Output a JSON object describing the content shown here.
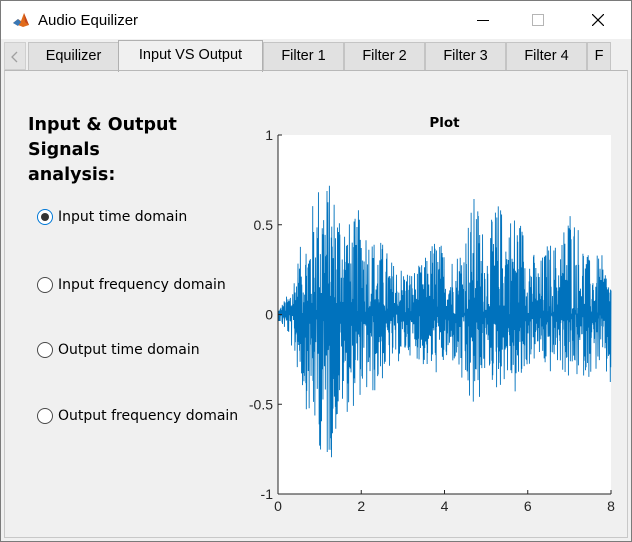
{
  "window": {
    "title": "Audio Equilizer"
  },
  "tabs": [
    {
      "label": "Equilizer",
      "active": false
    },
    {
      "label": "Input VS Output",
      "active": true
    },
    {
      "label": "Filter 1",
      "active": false
    },
    {
      "label": "Filter 2",
      "active": false
    },
    {
      "label": "Filter 3",
      "active": false
    },
    {
      "label": "Filter 4",
      "active": false
    },
    {
      "label": "F",
      "active": false
    }
  ],
  "panel": {
    "heading_line1": "Input & Output Signals",
    "heading_line2": "analysis:",
    "options": [
      {
        "label": "Input time domain",
        "selected": true
      },
      {
        "label": "Input frequency domain",
        "selected": false
      },
      {
        "label": "Output time domain",
        "selected": false
      },
      {
        "label": "Output frequency domain",
        "selected": false
      }
    ]
  },
  "colors": {
    "signal": "#0072bd",
    "accent": "#0078d7"
  },
  "chart_data": {
    "type": "line",
    "title": "Plot",
    "xlabel": "",
    "ylabel": "",
    "xlim": [
      0,
      8
    ],
    "ylim": [
      -1,
      1
    ],
    "x_ticks": [
      0,
      2,
      4,
      6,
      8
    ],
    "y_ticks": [
      1,
      0.5,
      0,
      -0.5,
      -1
    ],
    "y_tick_labels": [
      "1",
      "0.5",
      "0",
      "-0.5",
      "-1"
    ],
    "series": [
      {
        "envelope": [
          {
            "t": 0.0,
            "max": 0.03,
            "min": -0.03
          },
          {
            "t": 0.25,
            "max": 0.12,
            "min": -0.12
          },
          {
            "t": 0.5,
            "max": 0.35,
            "min": -0.35
          },
          {
            "t": 0.75,
            "max": 0.55,
            "min": -0.6
          },
          {
            "t": 1.0,
            "max": 0.8,
            "min": -0.75
          },
          {
            "t": 1.1,
            "max": 0.8,
            "min": -0.9
          },
          {
            "t": 1.3,
            "max": 0.72,
            "min": -0.8
          },
          {
            "t": 1.5,
            "max": 0.68,
            "min": -0.55
          },
          {
            "t": 1.75,
            "max": 0.5,
            "min": -0.55
          },
          {
            "t": 2.0,
            "max": 0.62,
            "min": -0.45
          },
          {
            "t": 2.25,
            "max": 0.45,
            "min": -0.48
          },
          {
            "t": 2.5,
            "max": 0.42,
            "min": -0.38
          },
          {
            "t": 2.75,
            "max": 0.3,
            "min": -0.3
          },
          {
            "t": 3.0,
            "max": 0.28,
            "min": -0.25
          },
          {
            "t": 3.25,
            "max": 0.25,
            "min": -0.22
          },
          {
            "t": 3.5,
            "max": 0.3,
            "min": -0.3
          },
          {
            "t": 3.75,
            "max": 0.45,
            "min": -0.35
          },
          {
            "t": 4.0,
            "max": 0.38,
            "min": -0.3
          },
          {
            "t": 4.25,
            "max": 0.33,
            "min": -0.28
          },
          {
            "t": 4.5,
            "max": 0.5,
            "min": -0.5
          },
          {
            "t": 4.75,
            "max": 0.7,
            "min": -0.6
          },
          {
            "t": 5.0,
            "max": 0.4,
            "min": -0.3
          },
          {
            "t": 5.25,
            "max": 0.65,
            "min": -0.45
          },
          {
            "t": 5.5,
            "max": 0.58,
            "min": -0.35
          },
          {
            "t": 5.75,
            "max": 0.6,
            "min": -0.5
          },
          {
            "t": 6.0,
            "max": 0.45,
            "min": -0.3
          },
          {
            "t": 6.25,
            "max": 0.28,
            "min": -0.25
          },
          {
            "t": 6.5,
            "max": 0.42,
            "min": -0.35
          },
          {
            "t": 6.75,
            "max": 0.4,
            "min": -0.28
          },
          {
            "t": 7.0,
            "max": 0.65,
            "min": -0.4
          },
          {
            "t": 7.25,
            "max": 0.5,
            "min": -0.35
          },
          {
            "t": 7.5,
            "max": 0.3,
            "min": -0.35
          },
          {
            "t": 7.75,
            "max": 0.35,
            "min": -0.3
          },
          {
            "t": 8.0,
            "max": 0.2,
            "min": -0.45
          }
        ]
      }
    ],
    "grid": false
  }
}
